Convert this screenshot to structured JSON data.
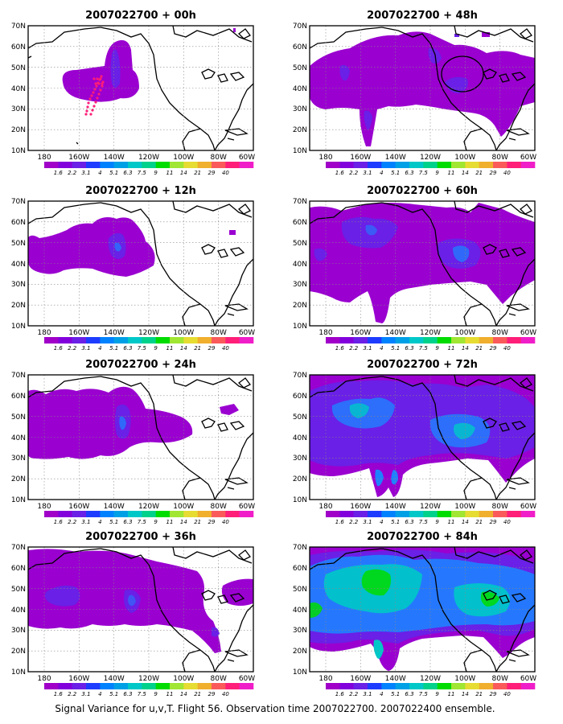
{
  "panels": [
    {
      "id": "p00",
      "title": "2007022700 + 00h"
    },
    {
      "id": "p48",
      "title": "2007022700 + 48h"
    },
    {
      "id": "p12",
      "title": "2007022700 + 12h"
    },
    {
      "id": "p60",
      "title": "2007022700 + 60h"
    },
    {
      "id": "p24",
      "title": "2007022700 + 24h"
    },
    {
      "id": "p72",
      "title": "2007022700 + 72h"
    },
    {
      "id": "p36",
      "title": "2007022700 + 36h"
    },
    {
      "id": "p84",
      "title": "2007022700 + 84h"
    }
  ],
  "lat_ticks": [
    "70N",
    "60N",
    "50N",
    "40N",
    "30N",
    "20N",
    "10N"
  ],
  "lon_ticks": [
    "180",
    "160W",
    "140W",
    "120W",
    "100W",
    "80W",
    "60W"
  ],
  "colorbar": {
    "labels": [
      "1.6",
      "2.2",
      "3.1",
      "4",
      "5.1",
      "6.3",
      "7.5",
      "9",
      "11",
      "14",
      "21",
      "29",
      "40"
    ],
    "colors": [
      "#a000c8",
      "#8200dc",
      "#6a20e6",
      "#1e3cff",
      "#0082ff",
      "#00a0e6",
      "#00c8c8",
      "#00d28c",
      "#00dc00",
      "#a0e632",
      "#e6dc32",
      "#f0af2d",
      "#fa5a5a",
      "#ff1e78",
      "#f01ec8"
    ]
  },
  "caption": "Signal Variance for u,v,T. Flight 56. Observation time 2007022700. 2007022400 ensemble."
}
